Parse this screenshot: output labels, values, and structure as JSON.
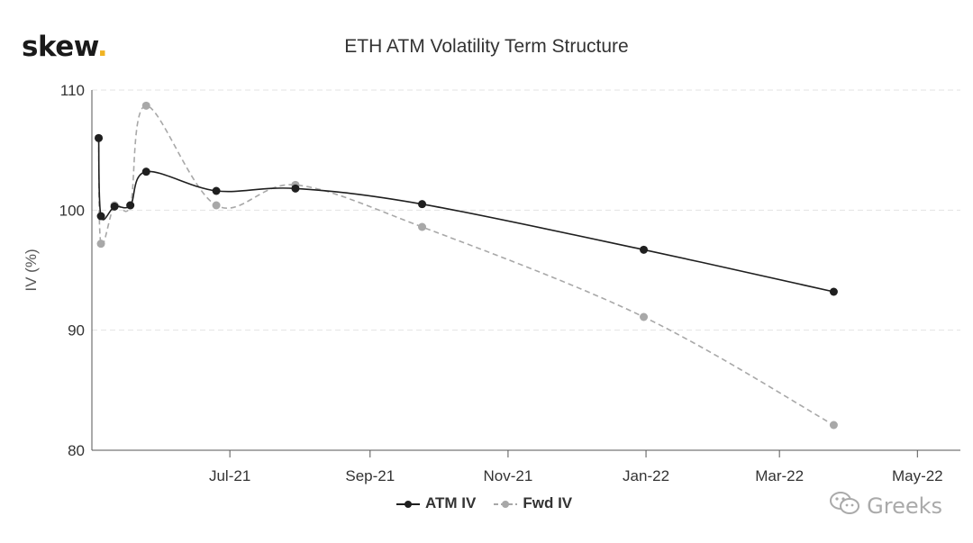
{
  "brand": {
    "name": "skew",
    "dot": "."
  },
  "watermark": {
    "text": "Greeks",
    "icon": "wechat-icon"
  },
  "colors": {
    "atm": "#1f1f1f",
    "fwd": "#a8a8a8",
    "brand_dot": "#f0b323",
    "grid": "#e3e3e3"
  },
  "chart_data": {
    "type": "line",
    "title": "ETH ATM Volatility Term Structure",
    "ylabel": "IV (%)",
    "xlabel": "",
    "ylim": [
      80,
      110
    ],
    "yticks": [
      80,
      90,
      100,
      110
    ],
    "xlim": [
      "2021-05-01",
      "2022-05-20"
    ],
    "xticks": [
      {
        "date": "2021-07-01",
        "label": "Jul-21"
      },
      {
        "date": "2021-09-01",
        "label": "Sep-21"
      },
      {
        "date": "2021-11-01",
        "label": "Nov-21"
      },
      {
        "date": "2022-01-01",
        "label": "Jan-22"
      },
      {
        "date": "2022-03-01",
        "label": "Mar-22"
      },
      {
        "date": "2022-05-01",
        "label": "May-22"
      }
    ],
    "grid": true,
    "legend_position": "bottom-center",
    "series": [
      {
        "name": "ATM IV",
        "style": "solid",
        "points": [
          {
            "x": "2021-05-04",
            "y": 106.0
          },
          {
            "x": "2021-05-05",
            "y": 99.5
          },
          {
            "x": "2021-05-11",
            "y": 100.3
          },
          {
            "x": "2021-05-18",
            "y": 100.4
          },
          {
            "x": "2021-05-25",
            "y": 103.2
          },
          {
            "x": "2021-06-25",
            "y": 101.6
          },
          {
            "x": "2021-07-30",
            "y": 101.8
          },
          {
            "x": "2021-09-24",
            "y": 100.5
          },
          {
            "x": "2021-12-31",
            "y": 96.7
          },
          {
            "x": "2022-03-25",
            "y": 93.2
          }
        ]
      },
      {
        "name": "Fwd IV",
        "style": "dashed",
        "points": [
          {
            "x": "2021-05-04",
            "y": 106.0
          },
          {
            "x": "2021-05-05",
            "y": 97.2
          },
          {
            "x": "2021-05-11",
            "y": 100.4
          },
          {
            "x": "2021-05-18",
            "y": 100.4
          },
          {
            "x": "2021-05-25",
            "y": 108.7
          },
          {
            "x": "2021-06-25",
            "y": 100.4
          },
          {
            "x": "2021-07-30",
            "y": 102.1
          },
          {
            "x": "2021-09-24",
            "y": 98.6
          },
          {
            "x": "2021-12-31",
            "y": 91.1
          },
          {
            "x": "2022-03-25",
            "y": 82.1
          }
        ]
      }
    ]
  }
}
